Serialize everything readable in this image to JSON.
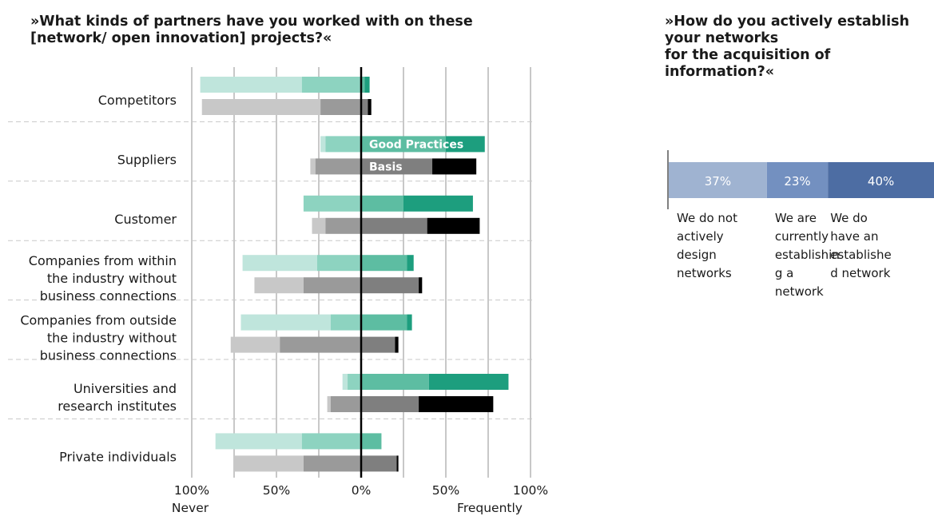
{
  "chart_data": [
    {
      "type": "bar",
      "title": "»What kinds of partners have you worked with on these\n[network/ open innovation] projects?«",
      "categories": [
        "Competitors",
        "Suppliers",
        "Customer",
        "Companies from within\nthe industry without\nbusiness connections",
        "Companies from outside\nthe industry without\nbusiness connections",
        "Universities and\nresearch institutes",
        "Private individuals"
      ],
      "series": [
        {
          "name": "Good Practices",
          "colors": [
            "#bfe5dc",
            "#8dd3c0",
            "#5dbda2",
            "#1d9e7e"
          ],
          "stacks": [
            [
              -95,
              -35,
              2,
              5
            ],
            [
              -24,
              -21,
              50,
              73
            ],
            [
              -34,
              -34,
              25,
              66
            ],
            [
              -70,
              -26,
              27,
              31
            ],
            [
              -71,
              -18,
              27,
              30
            ],
            [
              -11,
              -8,
              40,
              87
            ],
            [
              -86,
              -35,
              12,
              12
            ]
          ]
        },
        {
          "name": "Basis",
          "colors": [
            "#c8c8c8",
            "#9a9a9a",
            "#7f7f7f",
            "#000000"
          ],
          "stacks": [
            [
              -94,
              -24,
              4,
              6
            ],
            [
              -30,
              -27,
              42,
              68
            ],
            [
              -29,
              -21,
              39,
              70
            ],
            [
              -63,
              -34,
              34,
              36
            ],
            [
              -77,
              -48,
              20,
              22
            ],
            [
              -20,
              -18,
              34,
              78
            ],
            [
              -75,
              -34,
              21,
              22
            ]
          ]
        }
      ],
      "xlim": [
        -100,
        100
      ],
      "x_ticks": [
        "100%",
        "50%",
        "0%",
        "50%",
        "100%"
      ],
      "x_tick_values": [
        -100,
        -50,
        0,
        50,
        100
      ],
      "xlabel_left": "Never",
      "xlabel_right": "Frequently",
      "grid": true
    },
    {
      "type": "bar",
      "orientation": "stacked-horizontal",
      "title": "»How do you actively establish\nyour networks\nfor the acquisition of\ninformation?«",
      "segments": [
        {
          "label": "We do not\nactively\ndesign\nnetworks",
          "value": 37,
          "value_label": "37%",
          "color": "#9fb3d1"
        },
        {
          "label": "We are\ncurrently\nestablishin\ng a\nnetwork",
          "value": 23,
          "value_label": "23%",
          "color": "#7390c0"
        },
        {
          "label": "We do\nhave an\nestablishe\nd network",
          "value": 40,
          "value_label": "40%",
          "color": "#4d6da3"
        }
      ]
    }
  ]
}
